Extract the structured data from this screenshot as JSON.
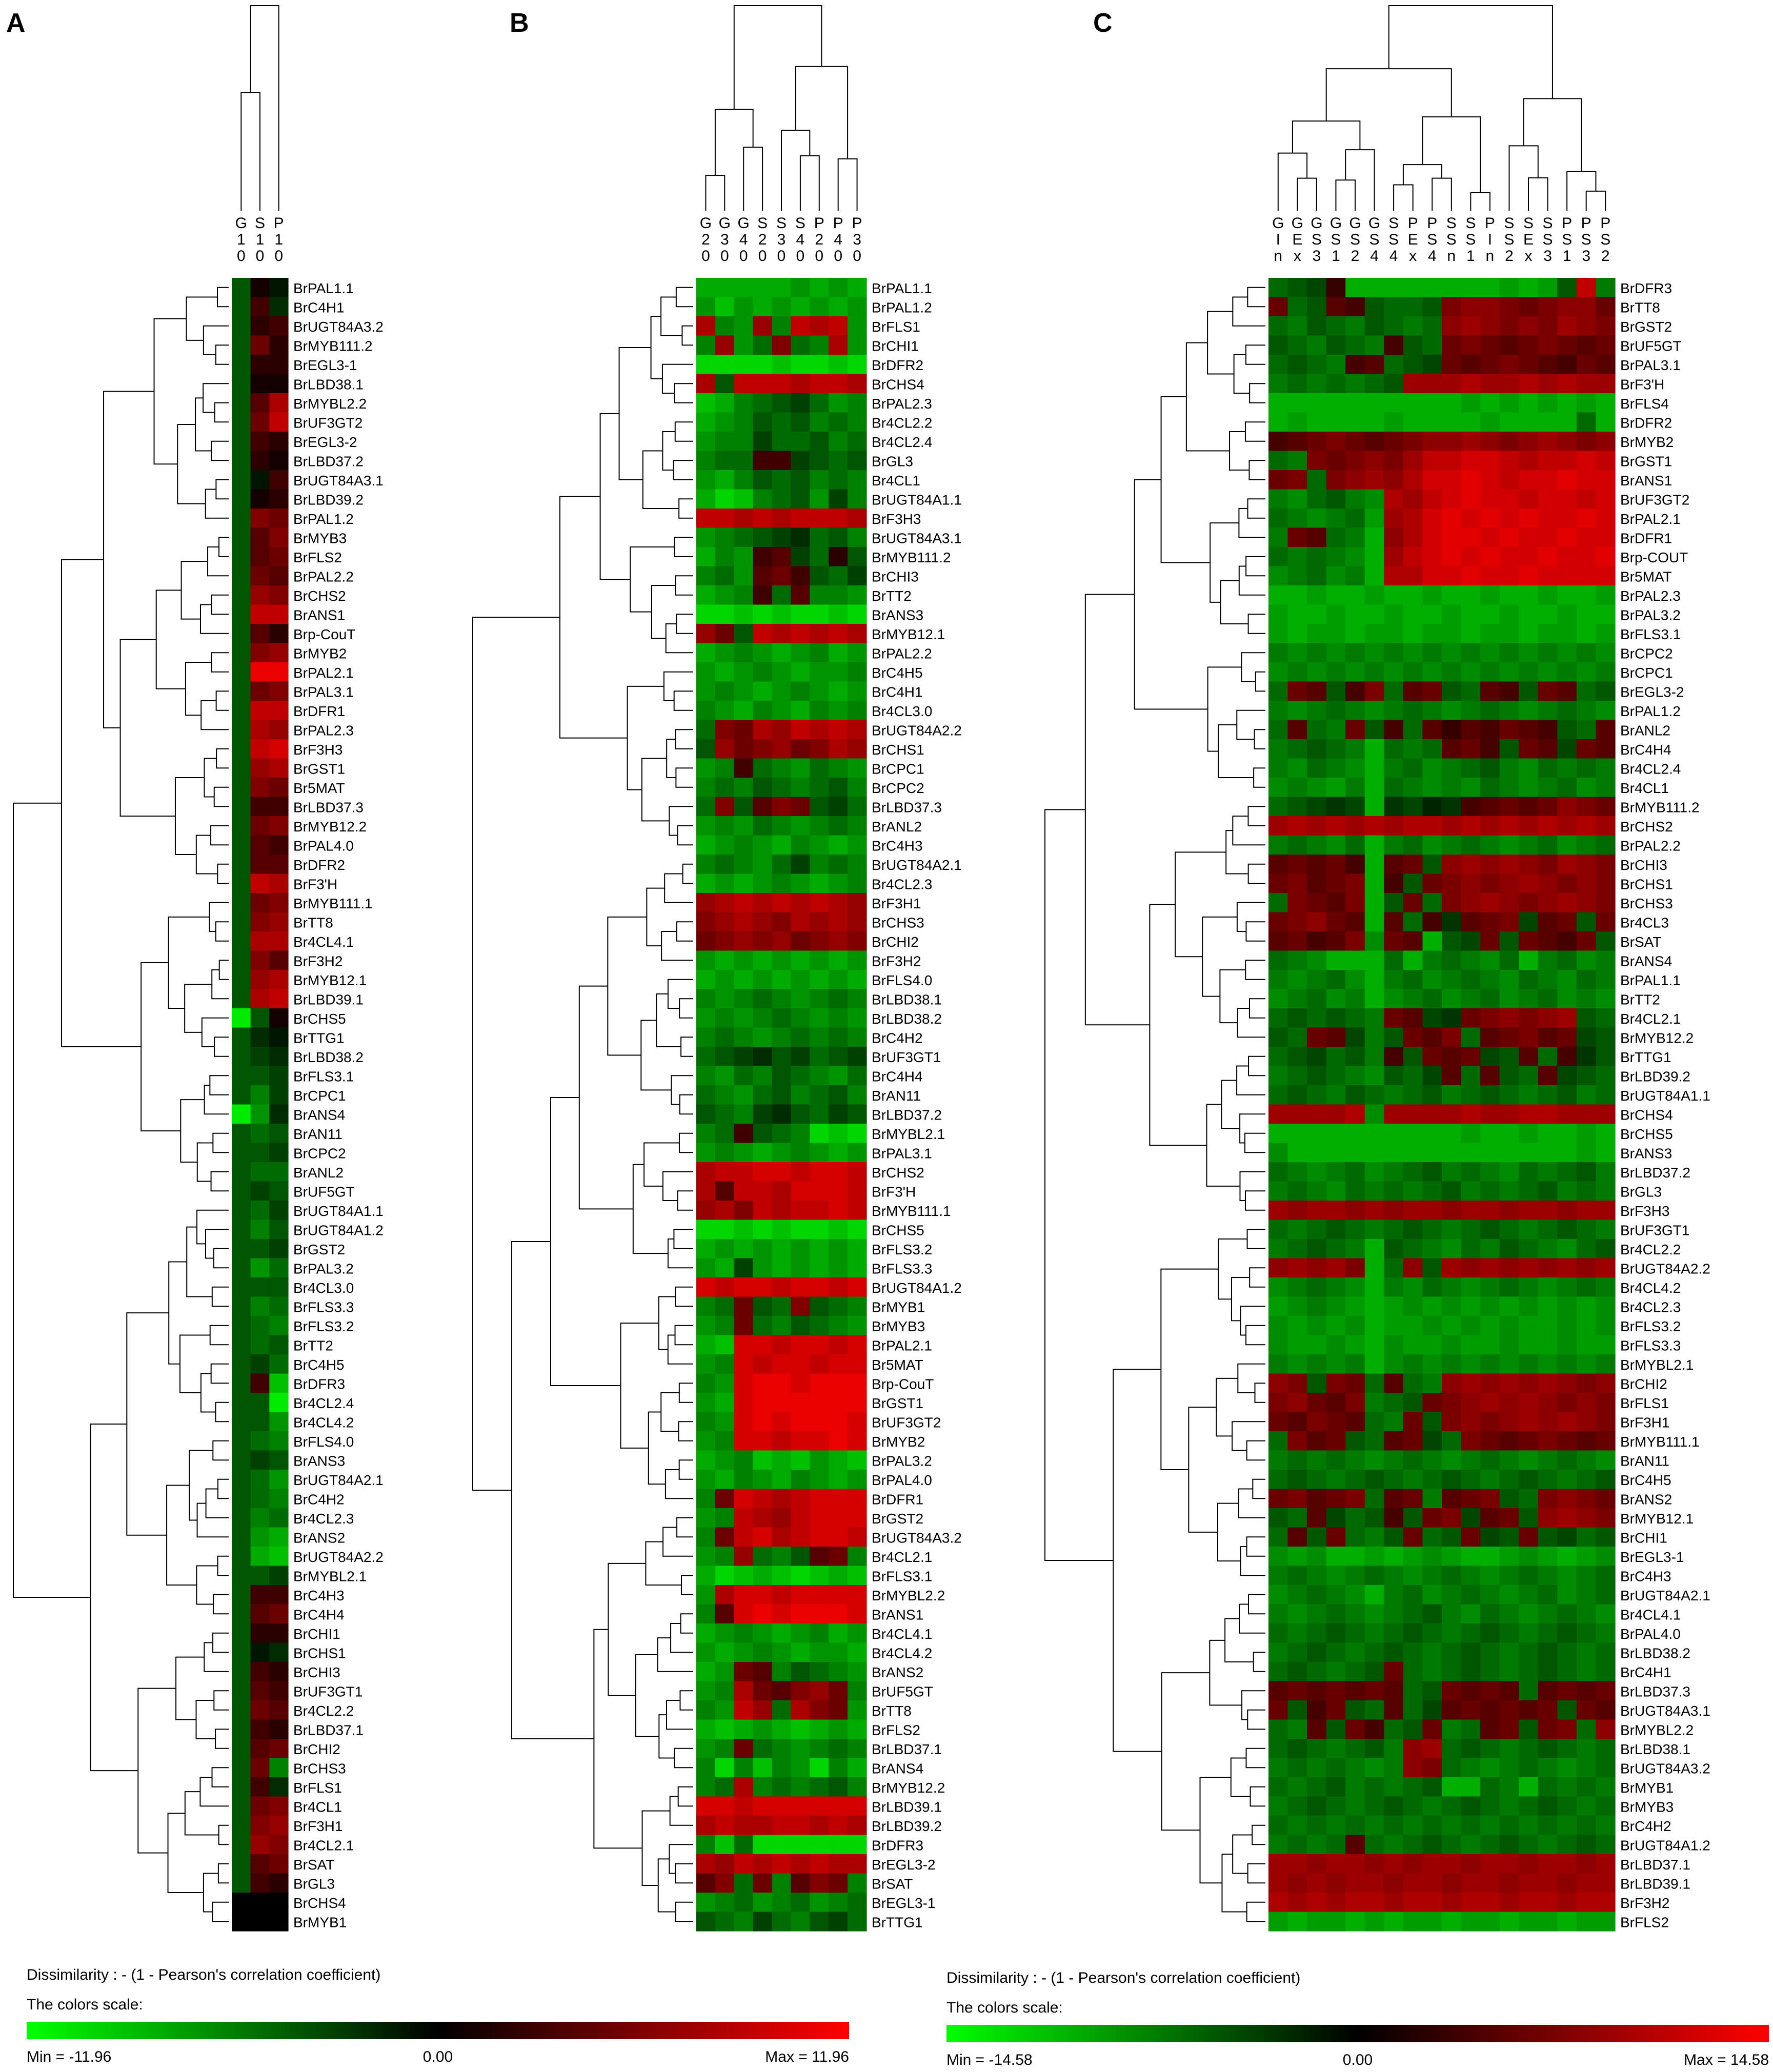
{
  "panels": [
    {
      "letter": "A",
      "columns": [
        "G\n1\n0",
        "S\n1\n0",
        "P\n1\n0"
      ],
      "rows": [
        "BrPAL1.1",
        "BrC4H1",
        "BrUGT84A3.2",
        "BrMYB111.2",
        "BrEGL3-1",
        "BrLBD38.1",
        "BrMYBL2.2",
        "BrUF3GT2",
        "BrEGL3-2",
        "BrLBD37.2",
        "BrUGT84A3.1",
        "BrLBD39.2",
        "BrPAL1.2",
        "BrMYB3",
        "BrFLS2",
        "BrPAL2.2",
        "BrCHS2",
        "BrANS1",
        "Brp-CouT",
        "BrMYB2",
        "BrPAL2.1",
        "BrPAL3.1",
        "BrDFR1",
        "BrPAL2.3",
        "BrF3H3",
        "BrGST1",
        "Br5MAT",
        "BrLBD37.3",
        "BrMYB12.2",
        "BrPAL4.0",
        "BrDFR2",
        "BrF3'H",
        "BrMYB111.1",
        "BrTT8",
        "Br4CL4.1",
        "BrF3H2",
        "BrMYB12.1",
        "BrLBD39.1",
        "BrCHS5",
        "BrTTG1",
        "BrLBD38.2",
        "BrFLS3.1",
        "BrCPC1",
        "BrANS4",
        "BrAN11",
        "BrCPC2",
        "BrANL2",
        "BrUF5GT",
        "BrUGT84A1.1",
        "BrUGT84A1.2",
        "BrGST2",
        "BrPAL3.2",
        "Br4CL3.0",
        "BrFLS3.3",
        "BrFLS3.2",
        "BrTT2",
        "BrC4H5",
        "BrDFR3",
        "Br4CL2.4",
        "Br4CL4.2",
        "BrFLS4.0",
        "BrANS3",
        "BrUGT84A2.1",
        "BrC4H2",
        "Br4CL2.3",
        "BrANS2",
        "BrUGT84A2.2",
        "BrMYBL2.1",
        "BrC4H3",
        "BrC4H4",
        "BrCHI1",
        "BrCHS1",
        "BrCHI3",
        "BrUF3GT1",
        "Br4CL2.2",
        "BrLBD37.1",
        "BrCHI2",
        "BrCHS3",
        "BrFLS1",
        "Br4CL1",
        "BrF3H1",
        "Br4CL2.1",
        "BrSAT",
        "BrGL3",
        "BrCHS4",
        "BrMYB1"
      ]
    },
    {
      "letter": "B",
      "columns": [
        "G\n2\n0",
        "G\n3\n0",
        "G\n4\n0",
        "S\n2\n0",
        "S\n3\n0",
        "S\n4\n0",
        "P\n2\n0",
        "P\n4\n0",
        "P\n3\n0"
      ],
      "rows": [
        "BrPAL1.1",
        "BrPAL1.2",
        "BrFLS1",
        "BrCHI1",
        "BrDFR2",
        "BrCHS4",
        "BrPAL2.3",
        "Br4CL2.2",
        "Br4CL2.4",
        "BrGL3",
        "Br4CL1",
        "BrUGT84A1.1",
        "BrF3H3",
        "BrUGT84A3.1",
        "BrMYB111.2",
        "BrCHI3",
        "BrTT2",
        "BrANS3",
        "BrMYB12.1",
        "BrPAL2.2",
        "BrC4H5",
        "BrC4H1",
        "Br4CL3.0",
        "BrUGT84A2.2",
        "BrCHS1",
        "BrCPC1",
        "BrCPC2",
        "BrLBD37.3",
        "BrANL2",
        "BrC4H3",
        "BrUGT84A2.1",
        "Br4CL2.3",
        "BrF3H1",
        "BrCHS3",
        "BrCHI2",
        "BrF3H2",
        "BrFLS4.0",
        "BrLBD38.1",
        "BrLBD38.2",
        "BrC4H2",
        "BrUF3GT1",
        "BrC4H4",
        "BrAN11",
        "BrLBD37.2",
        "BrMYBL2.1",
        "BrPAL3.1",
        "BrCHS2",
        "BrF3'H",
        "BrMYB111.1",
        "BrCHS5",
        "BrFLS3.2",
        "BrFLS3.3",
        "BrUGT84A1.2",
        "BrMYB1",
        "BrMYB3",
        "BrPAL2.1",
        "Br5MAT",
        "Brp-CouT",
        "BrGST1",
        "BrUF3GT2",
        "BrMYB2",
        "BrPAL3.2",
        "BrPAL4.0",
        "BrDFR1",
        "BrGST2",
        "BrUGT84A3.2",
        "Br4CL2.1",
        "BrFLS3.1",
        "BrMYBL2.2",
        "BrANS1",
        "Br4CL4.1",
        "Br4CL4.2",
        "BrANS2",
        "BrUF5GT",
        "BrTT8",
        "BrFLS2",
        "BrLBD37.1",
        "BrANS4",
        "BrMYB12.2",
        "BrLBD39.1",
        "BrLBD39.2",
        "BrDFR3",
        "BrEGL3-2",
        "BrSAT",
        "BrEGL3-1",
        "BrTTG1"
      ]
    },
    {
      "letter": "C",
      "columns": [
        "G\nI\nn",
        "G\nE\nx",
        "G\nS\n3",
        "G\nS\n1",
        "G\nS\n2",
        "G\nS\n4",
        "S\nS\n4",
        "P\nE\nx",
        "P\nS\n4",
        "S\nS\nn",
        "S\nS\n1",
        "P\nI\nn",
        "S\nS\n2",
        "S\nE\nx",
        "S\nS\n3",
        "P\nS\n1",
        "P\nS\n3",
        "P\nS\n2"
      ],
      "rows": [
        "BrDFR3",
        "BrTT8",
        "BrGST2",
        "BrUF5GT",
        "BrPAL3.1",
        "BrF3'H",
        "BrFLS4",
        "BrDFR2",
        "BrMYB2",
        "BrGST1",
        "BrANS1",
        "BrUF3GT2",
        "BrPAL2.1",
        "BrDFR1",
        "Brp-COUT",
        "Br5MAT",
        "BrPAL2.3",
        "BrPAL3.2",
        "BrFLS3.1",
        "BrCPC2",
        "BrCPC1",
        "BrEGL3-2",
        "BrPAL1.2",
        "BrANL2",
        "BrC4H4",
        "Br4CL2.4",
        "Br4CL1",
        "BrMYB111.2",
        "BrCHS2",
        "BrPAL2.2",
        "BrCHI3",
        "BrCHS1",
        "BrCHS3",
        "Br4CL3",
        "BrSAT",
        "BrANS4",
        "BrPAL1.1",
        "BrTT2",
        "Br4CL2.1",
        "BrMYB12.2",
        "BrTTG1",
        "BrLBD39.2",
        "BrUGT84A1.1",
        "BrCHS4",
        "BrCHS5",
        "BrANS3",
        "BrLBD37.2",
        "BrGL3",
        "BrF3H3",
        "BrUF3GT1",
        "Br4CL2.2",
        "BrUGT84A2.2",
        "Br4CL4.2",
        "Br4CL2.3",
        "BrFLS3.2",
        "BrFLS3.3",
        "BrMYBL2.1",
        "BrCHI2",
        "BrFLS1",
        "BrF3H1",
        "BrMYB111.1",
        "BrAN11",
        "BrC4H5",
        "BrANS2",
        "BrMYB12.1",
        "BrCHI1",
        "BrEGL3-1",
        "BrC4H3",
        "BrUGT84A2.1",
        "Br4CL4.1",
        "BrPAL4.0",
        "BrLBD38.2",
        "BrC4H1",
        "BrLBD37.3",
        "BrUGT84A3.1",
        "BrMYBL2.2",
        "BrLBD38.1",
        "BrUGT84A3.2",
        "BrMYB1",
        "BrMYB3",
        "BrC4H2",
        "BrUGT84A1.2",
        "BrLBD37.1",
        "BrLBD39.1",
        "BrF3H2",
        "BrFLS2"
      ]
    }
  ],
  "legends": [
    {
      "dissimilarity": "Dissimilarity : - (1 - Pearson's correlation coefficient)",
      "scale_title": "The colors scale:",
      "min_label": "Min = -11.96",
      "mid_label": "0.00",
      "max_label": "Max = 11.96",
      "min": -11.96,
      "max": 11.96
    },
    {
      "dissimilarity": "Dissimilarity : - (1 - Pearson's correlation coefficient)",
      "scale_title": "The colors scale:",
      "min_label": "Min = -14.58",
      "mid_label": "0.00",
      "max_label": "Max = 14.58",
      "min": -14.58,
      "max": 14.58
    }
  ],
  "colors": {
    "low": "#00ff00",
    "mid": "#000000",
    "high": "#ff0000",
    "line": "#000000"
  },
  "chart_data": {
    "type": "heatmap",
    "heatmaps": [
      {
        "panel": "A",
        "values": [
          "-4 1 -1",
          "-4 3 -2",
          "-4 2 3",
          "-4 5 2",
          "-4 2 2",
          "-4 1 1",
          "-4 4 8",
          "-4 5 9",
          "-4 3 2",
          "-4 2 1",
          "-4 -1 3",
          "-4 1 2",
          "-4 6 5",
          "-4 4 6",
          "-4 4 5",
          "-4 5 4",
          "-4 7 6",
          "-4 9 9",
          "-4 4 2",
          "-4 6 7",
          "-4 11 11",
          "-4 5 6",
          "-4 9 9",
          "-4 8 7",
          "-4 9 10",
          "-4 7 8",
          "-4 6 5",
          "-4 3 3",
          "-4 5 6",
          "-4 4 3",
          "-4 4 4",
          "-4 9 8",
          "-4 5 6",
          "-4 6 7",
          "-4 8 8",
          "-4 6 4",
          "-4 7 8",
          "-4 8 9",
          "-11 -4 1",
          "-4 -2 -1",
          "-4 -3 -2",
          "-4 -4 -3",
          "-4 -6 -3",
          "-11 -7 -2",
          "-4 -5 -4",
          "-4 -4 -3",
          "-4 -5 -5",
          "-4 -3 -4",
          "-4 -5 -3",
          "-4 -6 -4",
          "-4 -4 -3",
          "-4 -7 -5",
          "-4 -4 -4",
          "-4 -6 -5",
          "-4 -5 -6",
          "-4 -5 -4",
          "-4 -3 -5",
          "-4 3 -9",
          "-4 -4 -11",
          "-4 -4 -7",
          "-4 -5 -6",
          "-4 -3 -4",
          "-4 -5 -7",
          "-4 -5 -6",
          "-4 -6 -5",
          "-4 -7 -8",
          "-4 -8 -9",
          "-4 -4 -3",
          "-4 3 3",
          "-4 4 5",
          "-4 2 2",
          "-4 -1 -2",
          "-4 3 2",
          "-4 4 3",
          "-4 5 4",
          "-4 3 2",
          "-4 4 5",
          "-4 5 -6",
          "-4 3 -2",
          "-4 5 6",
          "-4 6 7",
          "-4 7 6",
          "-4 4 5",
          "-4 3 2"
        ]
      },
      {
        "panel": "B",
        "values": [
          "-8 -8 -8 -8 -8 -7 -8 -7 -8",
          "-7 -9 -7 -8 -7 -8 -7 -8 -7",
          "8 -6 -7 7 -6 9 8 9 -7",
          "-6 7 -7 -5 6 -5 -6 8 -7",
          "-10 -10 -10 -10 -9 -10 -10 -9 -10",
          "8 -4 9 9 9 8 9 9 8",
          "-9 -8 -6 -5 -4 -3 -5 -7 -6",
          "-8 -7 -6 -4 -5 -4 -6 -5 -6",
          "-7 -6 -6 -3 -5 -5 -4 -6 -5",
          "-6 -5 -5 3 3 -3 -4 -5 -4",
          "-7 -8 -6 -4 -5 -4 -6 -5 -6",
          "-8 -10 -9 -6 -5 -4 -7 -3 -6",
          "9 9 8 9 8 9 9 9 8",
          "-7 -6 -5 -4 -3 -2 -5 -4 -6",
          "-8 -6 -7 3 4 -3 -5 2 -4",
          "-6 -5 -7 4 5 3 -4 -5 -3",
          "-8 -7 -6 3 -5 4 -6 -6 -7",
          "-10 -10 -9 -10 -9 -10 -10 -9 -10",
          "7 5 -4 9 8 9 8 9 8",
          "-8 -7 -6 -7 -8 -7 -6 -8 -7",
          "-7 -8 -7 -6 -7 -8 -7 -7 -6",
          "-7 -6 -7 -8 -7 -6 -7 -8 -7",
          "-6 -7 -8 -6 -7 -8 -6 -7 -6",
          "-5 6 5 8 7 9 8 9 8",
          "-4 7 5 6 7 5 6 8 7",
          "-7 -6 3 -5 -6 -7 -5 -6 -7",
          "-6 -5 -6 -4 -5 -6 -5 -4 -6",
          "-5 6 -4 4 6 5 -4 -3 -5",
          "-7 -6 -7 -5 -6 -7 -6 -5 -6",
          "-8 -7 -6 -7 -8 -6 -7 -8 -7",
          "-6 -5 -6 -7 -5 -3 -6 -5 -6",
          "-8 -7 -8 -7 -6 -7 -8 -7 -6",
          "7 8 9 8 9 8 9 8 7",
          "6 7 8 7 6 8 7 8 7",
          "5 6 7 6 7 5 6 7 6",
          "-7 -8 -7 -8 -7 -8 -7 -8 -7",
          "-8 -7 -8 -7 -8 -7 -8 -7 -8",
          "-6 -7 -6 -5 -6 -7 -6 -5 -6",
          "-7 -6 -7 -6 -5 -6 -7 -6 -7",
          "-6 -5 -6 -7 -6 -5 -6 -5 -6",
          "-5 -4 -3 -2 -4 -3 -5 -4 -3",
          "-6 -7 -5 -6 -4 -5 -6 -7 -5",
          "-5 -6 -7 -5 -4 -6 -5 -4 -6",
          "-4 -5 -6 -3 -2 -4 -5 -3 -4",
          "-6 -5 3 -4 -5 -6 -10 -9 -10",
          "-7 -6 -7 -8 -7 -6 -7 -8 -7",
          "8 9 9 10 10 9 10 10 9",
          "8 4 9 9 8 10 10 10 9",
          "7 8 6 9 8 9 9 10 9",
          "-10 -10 -9 -10 -9 -10 -10 -9 -10",
          "-8 -7 -8 -7 -8 -7 -8 -7 -8",
          "-7 -8 -3 -7 -8 -7 -8 -7 -8",
          "10 9 10 10 9 10 10 9 10",
          "-6 -5 5 -4 -5 6 -4 -5 -6",
          "-7 -6 5 -5 -6 -4 -5 -6 -7",
          "-8 -9 10 10 9 10 10 9 10",
          "-7 -6 10 9 10 10 9 10 10",
          "-6 -7 10 11 11 10 11 11 11",
          "-7 -8 10 11 11 11 11 11 11",
          "-6 -7 10 11 10 11 11 11 10",
          "-7 -6 10 10 9 10 10 11 10",
          "-8 -7 -6 -9 -8 -9 -7 -8 -9",
          "-7 -8 -6 -7 -8 -6 -7 -8 -7",
          "-6 5 10 9 8 9 10 10 10",
          "-7 -6 9 8 7 9 10 10 10",
          "-6 5 9 10 8 9 10 10 9",
          "-7 -6 7 -5 -6 -4 4 5 -6",
          "-8 -10 -9 -8 -9 -10 -9 -8 -9",
          "-7 8 10 10 9 10 10 10 10",
          "-6 4 10 11 10 11 11 11 10",
          "-8 -7 -6 -7 -8 -7 -6 -8 -7",
          "-7 -8 -7 -6 -7 -8 -7 -7 -8",
          "-8 -7 5 4 -6 -4 -5 -6 -7",
          "-7 -6 8 5 4 6 7 5 -6",
          "-6 -7 9 7 -5 8 6 5 -7",
          "-8 -9 -8 -7 -8 -9 -8 -7 -8",
          "-7 -6 5 -5 -6 -7 -6 -5 -6",
          "-6 -10 -6 -9 -6 -7 -10 -6 -8",
          "-6 -5 8 -6 -5 -6 -5 -4 -6",
          "10 10 9 10 10 10 10 10 10",
          "8 9 8 8 9 9 8 9 8",
          "-6 -9 -5 -10 -10 -10 -10 -10 -10",
          "8 7 9 8 9 8 9 8 8",
          "4 6 -5 5 -6 4 6 5 -6",
          "-7 -6 -5 -7 -6 -5 -7 -6 -5",
          "-4 -5 -6 -3 -5 -6 -4 -3 -5"
        ]
      },
      {
        "panel": "C",
        "values": [
          "-6 -5 -4 3 -10 -10 -10 -10 -10 -10 -10 -10 -9 -10 -9 -5 11 -7",
          "6 -6 -5 5 4 -5 -6 -6 -5 7 8 8 7 6 7 8 8 6",
          "-6 -7 -5 -6 -7 -5 -6 -7 -6 8 9 8 7 8 7 9 8 7",
          "-5 -6 -7 -5 -6 -7 4 -5 -6 6 7 6 5 6 7 6 5 6",
          "-6 -5 -6 -7 4 5 -6 -5 -4 6 5 6 7 6 5 4 6 5",
          "-7 -6 -7 -6 -7 -6 -5 9 9 9 10 9 9 10 9 10 9 9",
          "-10 -10 -10 -10 -10 -10 -10 -10 -10 -10 -9 -10 -9 -10 -9 -10 -9 -10",
          "-10 -9 -10 -10 -10 -10 -9 -10 -10 -10 -10 -9 -10 -10 -10 -10 -6 -10",
          "4 5 6 7 6 5 6 7 8 8 9 8 7 8 9 8 7 8",
          "-6 -7 7 6 7 8 7 9 11 11 12 12 11 10 11 11 12 11",
          "6 7 -6 7 8 9 8 10 12 12 13 12 11 12 12 13 12 12",
          "-7 -8 -6 -5 -7 -8 10 9 11 12 13 12 12 11 12 12 11 12",
          "-6 -7 -8 -7 -6 -9 9 10 12 13 12 13 12 13 12 12 13 12",
          "-7 6 5 -6 -7 -10 8 10 12 13 13 12 13 12 12 13 12 12",
          "-6 -7 -6 -7 -8 -10 9 11 12 13 12 13 12 12 13 12 12 13",
          "-8 -7 -6 -8 -7 -10 10 10 12 12 13 12 12 13 12 12 12 12",
          "-10 -10 -9 -10 -10 -9 -10 -10 -9 -10 -10 -9 -10 -10 -9 -10 -10 -9",
          "-9 -10 -10 -9 -10 -10 -9 -10 -10 -9 -10 -10 -9 -10 -10 -9 -10 -10",
          "-9 -10 -9 -9 -10 -9 -9 -10 -9 -9 -10 -9 -9 -10 -9 -9 -10 -9",
          "-7 -8 -7 -8 -7 -8 -7 -8 -7 -8 -7 -8 -7 -8 -7 -8 -7 -8",
          "-8 -7 -8 -7 -8 -7 -8 -7 -8 -7 -8 -7 -8 -7 -8 -7 -8 -7",
          "-6 6 5 -5 4 7 -6 5 6 -5 -6 5 4 -5 6 5 -6 -5",
          "-7 -8 -7 -6 -7 -8 -7 -6 -7 -8 -7 -6 -7 -8 -7 -6 -7 -8",
          "-6 5 -6 -7 6 -5 4 -6 5 3 5 4 6 5 4 -5 -6 5",
          "-7 -6 -5 -6 -7 -10 -6 -7 -6 5 6 4 -5 6 5 -4 6 5",
          "-7 -8 -6 -7 -8 -10 -7 -6 -8 -7 -6 -5 -7 -8 -6 -7 -6 -7",
          "-8 -7 -8 -9 -7 -10 -6 -7 -8 -7 -8 -6 -7 -8 -7 -6 -8 -7",
          "-6 -5 -4 -3 -4 -10 -3 -4 -2 -3 4 5 6 5 6 8 7 6",
          "9 10 9 10 9 10 9 10 10 9 10 9 10 9 10 9 10 9",
          "-7 -6 -7 -8 -6 -10 -7 -6 -8 -7 -6 -7 -8 -7 -6 -8 -7 -6",
          "5 6 5 6 4 -10 5 6 -5 8 9 8 9 8 7 9 8 7",
          "6 7 5 6 7 -10 4 -5 6 7 8 7 8 9 8 7 8 7",
          "-6 7 6 5 7 -10 -5 6 -6 7 8 9 8 7 8 9 8 7",
          "6 7 8 6 5 -10 5 -6 4 -3 5 6 7 -4 5 6 -5 6",
          "5 6 4 5 7 -8 6 5 -10 -5 -4 6 -5 6 5 4 6 -5",
          "-6 -7 -8 -10 -10 -10 -6 -10 -7 -6 -7 -8 -6 -10 -7 -6 -8 -7",
          "-7 -8 -7 -6 -8 -10 -7 -6 -8 -7 -6 -7 -8 -6 -7 -8 -6 -7",
          "-8 -7 -6 -8 -7 -10 -8 -7 -6 -8 -7 -6 -8 -7 -6 -8 -7 -8",
          "-6 -5 -6 -5 -6 -7 6 5 -4 -3 6 7 8 7 8 9 -5 -6",
          "-5 -6 6 5 -4 -7 -5 6 5 7 -6 5 6 7 5 6 -4 -5",
          "-6 -5 -4 -6 -5 -7 4 -5 6 5 6 -4 -5 5 -6 4 -3 -5",
          "-7 -6 -5 -6 -7 -8 -5 -6 -4 5 -6 5 -5 -6 5 -4 -5 -6",
          "-6 -5 -6 -7 -5 -6 -7 -6 -5 -7 -6 -5 -6 -7 -6 -5 -7 -6",
          "9 9 9 9 10 -8 9 9 9 9 10 9 9 10 10 9 9 9",
          "-10 -10 -10 -10 -10 -10 -10 -10 -10 -10 -9 -10 -10 -9 -10 -10 -9 -10",
          "-8 -10 -10 -10 -10 -10 -10 -10 -10 -10 -10 -10 -10 -10 -10 -10 -9 -10",
          "-6 -7 -8 -7 -6 -8 -7 -6 -5 -7 -6 -7 -8 -6 -7 -6 -5 -7",
          "-7 -6 -7 -8 -6 -7 -6 -7 -6 -5 -7 -6 -7 -6 -5 -7 -6 -7",
          "9 8 9 9 8 9 8 9 9 8 9 9 8 9 9 8 9 9",
          "-6 -7 -6 -5 -6 -7 -6 -5 -6 -7 -6 -5 -6 -7 -6 -5 -6 -7",
          "-7 -6 -5 -6 -7 -10 -5 -6 -7 -8 -6 -7 -5 -6 -7 -8 -6 -5",
          "8 9 8 9 7 -10 -6 8 -5 9 8 9 8 9 8 9 8 9",
          "-8 -7 -6 -7 -8 -10 -7 -8 -6 -7 -8 -7 -6 -7 -8 -7 -6 -7",
          "-9 -8 -7 -8 -9 -10 -9 -8 -9 -8 -9 -8 -9 -8 -9 -8 -9 -8",
          "-8 -9 -8 -9 -8 -10 -9 -9 -8 -9 -8 -9 -8 -9 -9 -8 -9 -8",
          "-8 -9 -9 -8 -9 -10 -8 -9 -9 -8 -9 -9 -8 -9 -9 -8 -9 -9",
          "-7 -8 -7 -8 -7 -10 -8 -7 -8 -7 -8 -7 -8 -7 -8 -7 -8 -7",
          "8 7 -5 7 6 -6 5 -6 -7 8 9 8 9 8 9 8 7 8",
          "7 8 6 5 7 -7 -6 -5 6 7 8 9 8 9 8 7 8 7",
          "6 5 7 6 5 -6 -7 6 -5 7 8 7 8 9 8 9 8 7",
          "-6 7 5 6 -5 -6 5 6 -4 -6 7 6 5 6 7 6 5 6",
          "-7 -6 -7 -6 -7 -8 -7 -6 -7 -8 -7 -6 -7 -8 -7 -6 -7 -8",
          "-6 -5 -6 -7 -6 -5 -6 -7 -6 -5 -6 -7 -6 -5 -6 -7 -6 -5",
          "6 7 5 6 7 -6 5 6 -7 5 6 7 -5 -6 7 8 7 6",
          "-5 -6 5 -4 -6 -5 4 -5 6 7 -4 5 6 -5 8 9 8 7",
          "-6 5 -5 6 -6 -7 -5 6 -6 -5 6 -4 -5 6 -5 -4 -6 -5",
          "-8 -9 -8 -10 -10 -9 -10 -9 -8 -9 -10 -10 -9 -8 -9 -10 -9 -8",
          "-7 -6 -7 -8 -7 -6 -7 -8 -7 -6 -7 -8 -7 -6 -7 -8 -7 -6",
          "-8 -7 -6 -7 -8 -10 -7 -6 -8 -7 -6 -7 -8 -7 -6 -8 -7 -6",
          "-7 -8 -7 -6 -7 -8 -7 -6 -5 -7 -8 -6 -7 -8 -7 -6 -7 -8",
          "-6 -7 -6 -5 -6 -7 -6 -5 -6 -7 -6 -5 -6 -7 -6 -5 -6 -7",
          "-7 -6 -5 -6 -7 -6 -5 -6 -7 -6 -5 -6 -7 -6 -5 -6 -7 -6",
          "-6 -5 -6 -7 -6 -5 6 -6 -7 -6 -5 -6 -7 -6 -5 -6 -7 -6",
          "5 6 5 6 5 6 5 -6 -5 6 5 6 5 -6 5 6 5 6",
          "6 -5 4 6 -5 -6 5 -6 -4 5 6 5 6 5 6 -5 6 5",
          "-6 -7 5 -5 6 4 -6 -5 6 -7 -6 5 6 -5 6 7 -6 8",
          "-6 -5 -6 -7 -6 -5 -7 8 9 -6 -5 -6 -7 -6 -5 -6 -7 -6",
          "-7 -6 -7 -6 -7 -8 -7 8 7 -6 -7 -8 -7 -6 -7 -8 -7 -6",
          "-6 -7 -6 -5 -7 -6 -7 -6 -5 -10 -10 -6 -7 -10 -6 -7 -6 -7",
          "-7 -6 -5 -6 -7 -6 -5 -6 -7 -6 -5 -6 -7 -6 -5 -6 -7 -6",
          "-6 -7 -6 -7 -6 -7 -6 -7 -6 -7 -6 -7 -6 -7 -6 -7 -6 -7",
          "-7 -6 -7 -6 5 -6 -7 -6 -5 -6 -7 -6 -5 -6 -7 -6 -5 -6",
          "9 9 8 9 9 8 9 8 9 9 8 9 9 8 9 9 8 9",
          "9 8 9 8 9 9 8 9 9 8 9 9 8 9 9 8 9 9",
          "10 9 10 9 10 10 9 10 10 9 10 10 9 10 10 9 10 10",
          "-9 -10 -9 -9 -10 -9 -10 -9 -9 -10 -9 -9 -10 -9 -9 -10 -9 -9",
          "-8 -9 -8 -9 -8 -9 -8 -9 -8 -9 -8 -9 -8 -9 -8 -9 -8 -9"
        ]
      }
    ]
  }
}
